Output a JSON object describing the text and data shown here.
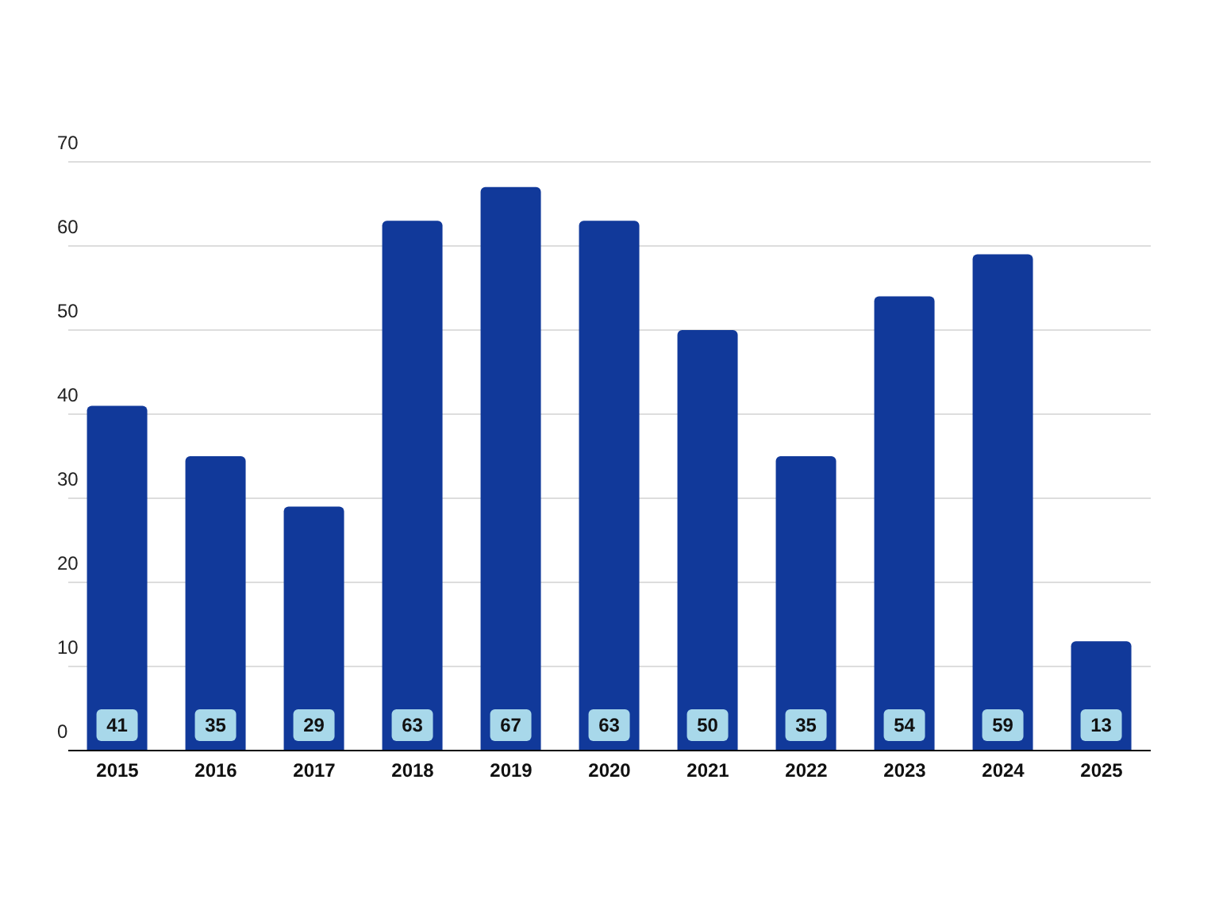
{
  "chart_data": {
    "type": "bar",
    "categories": [
      "2015",
      "2016",
      "2017",
      "2018",
      "2019",
      "2020",
      "2021",
      "2022",
      "2023",
      "2024",
      "2025"
    ],
    "values": [
      41,
      35,
      29,
      63,
      67,
      63,
      50,
      35,
      54,
      59,
      13
    ],
    "color": "#11399a",
    "ylim": [
      0,
      70
    ],
    "yticks": [
      0,
      10,
      20,
      30,
      40,
      50,
      60,
      70
    ],
    "grid": "y",
    "data_labels": true
  }
}
